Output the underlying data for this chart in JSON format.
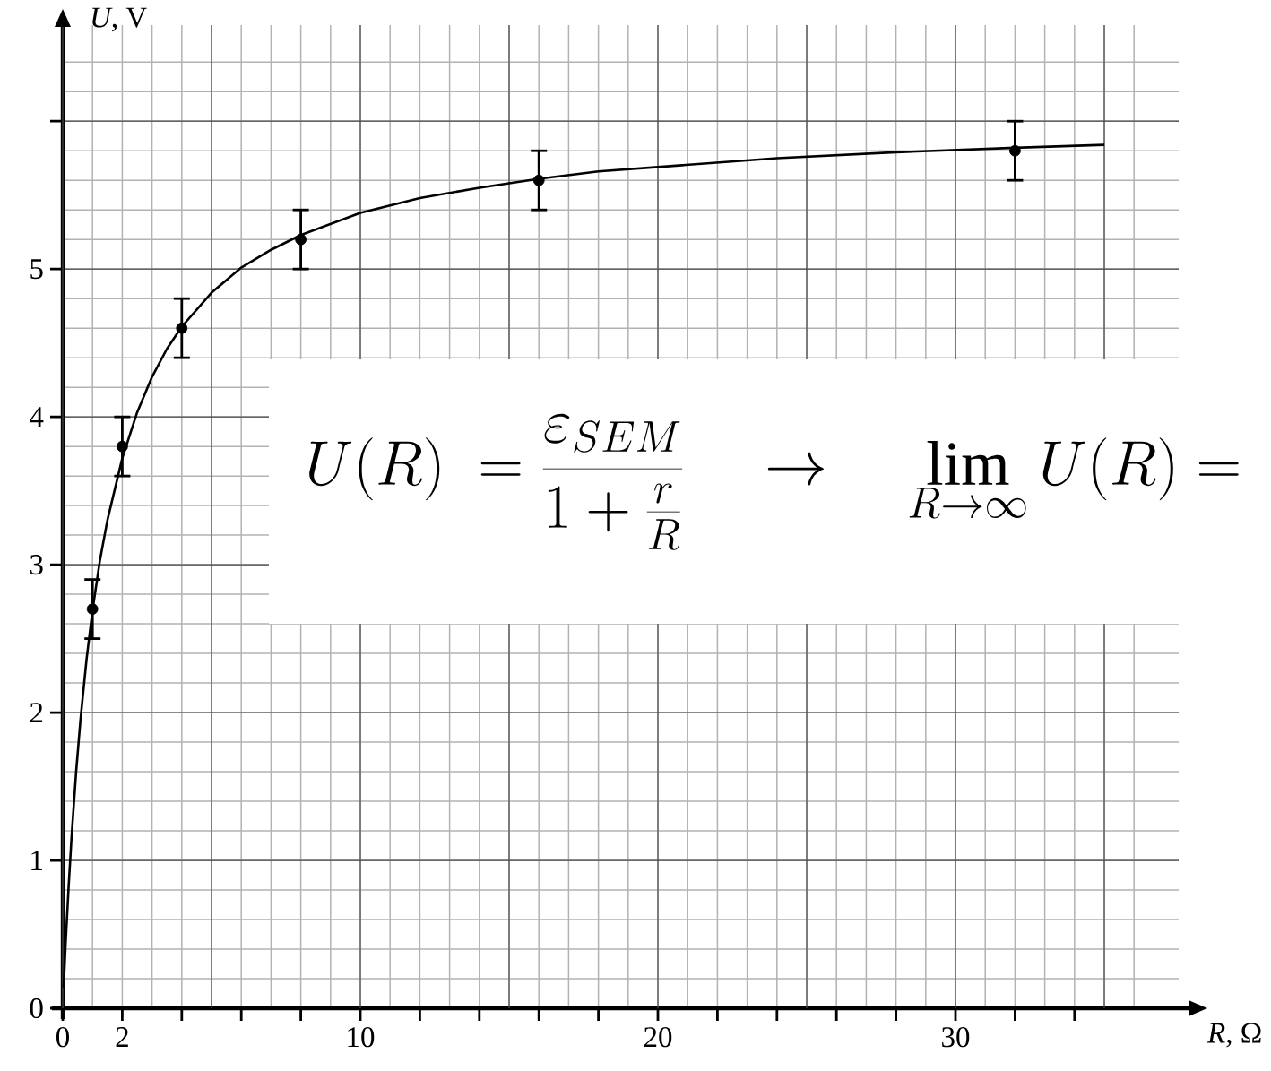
{
  "chart_data": {
    "type": "scatter",
    "xlabel": "*R*, Ω",
    "ylabel": "*U*, V",
    "xlim": [
      0,
      37.5
    ],
    "ylim": [
      0,
      6.65
    ],
    "xticks": [
      0,
      2,
      {
        "value": 4,
        "label": null
      },
      {
        "value": 6,
        "label": null
      },
      {
        "value": 8,
        "label": null
      },
      10,
      {
        "value": 12,
        "label": null
      },
      {
        "value": 14,
        "label": null
      },
      {
        "value": 16,
        "label": null
      },
      {
        "value": 18,
        "label": null
      },
      20,
      {
        "value": 22,
        "label": null
      },
      {
        "value": 24,
        "label": null
      },
      {
        "value": 26,
        "label": null
      },
      {
        "value": 28,
        "label": null
      },
      30,
      {
        "value": 32,
        "label": null
      },
      {
        "value": 34,
        "label": null
      }
    ],
    "yticks": [
      0,
      1,
      2,
      3,
      4,
      5,
      {
        "value": 6,
        "label": null
      }
    ],
    "grid": true,
    "series": [
      {
        "color": "#000000",
        "marker": "circle",
        "x": [
          1,
          2,
          4,
          8,
          16,
          32
        ],
        "values": [
          2.7,
          3.8,
          4.6,
          5.2,
          5.6,
          5.8
        ],
        "errors": [
          0.2,
          0.2,
          0.2,
          0.2,
          0.2,
          0.2
        ]
      },
      {
        "type": "line",
        "color": "#000000",
        "x": [
          0.03,
          0.1,
          0.2,
          0.3,
          0.45,
          0.6,
          0.8,
          1,
          1.25,
          1.5,
          2,
          2.5,
          3,
          3.5,
          4,
          5,
          6,
          7,
          8,
          10,
          12,
          14,
          16,
          18,
          20,
          24,
          28,
          32,
          35
        ],
        "values": [
          0.14,
          0.45,
          0.83,
          1.17,
          1.6,
          1.96,
          2.36,
          2.69,
          3.03,
          3.3,
          3.72,
          4.03,
          4.27,
          4.46,
          4.61,
          4.84,
          5.01,
          5.13,
          5.23,
          5.38,
          5.48,
          5.55,
          5.61,
          5.66,
          5.69,
          5.75,
          5.79,
          5.82,
          5.84
        ]
      }
    ],
    "annotations": [
      "U(R)\\ =\\frac{\\varepsilon_{SEM}}{1+\\frac{r}{R}}\\quad\\rightarrow\\quad\\lim_{R\\rightarrow\\infty}U(R)="
    ]
  }
}
